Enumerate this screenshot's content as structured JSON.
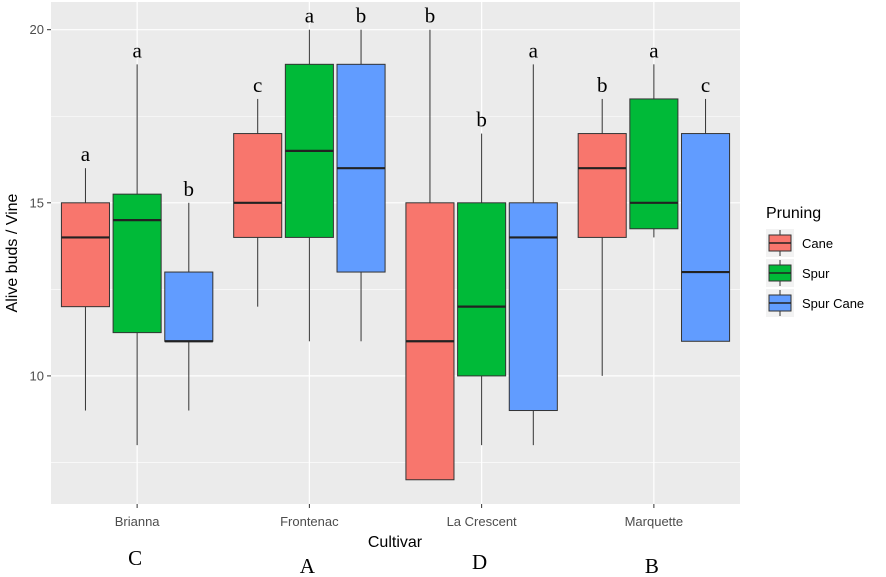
{
  "chart_data": {
    "type": "boxplot",
    "xlabel": "Cultivar",
    "ylabel": "Alive buds / Vine",
    "ylim": [
      6.3,
      20.8
    ],
    "yticks": [
      10,
      15,
      20
    ],
    "grid": true,
    "legend": {
      "title": "Pruning",
      "position": "right",
      "entries": [
        "Cane",
        "Spur",
        "Spur Cane"
      ]
    },
    "categories": [
      "Brianna",
      "Frontenac",
      "La Crescent",
      "Marquette"
    ],
    "category_letters": [
      "C",
      "A",
      "D",
      "B"
    ],
    "series": [
      {
        "name": "Cane",
        "color": "#F8766D",
        "boxes": [
          {
            "min": 9,
            "q1": 12,
            "median": 14,
            "q3": 15,
            "max": 16,
            "letter": "a"
          },
          {
            "min": 12,
            "q1": 14,
            "median": 15,
            "q3": 17,
            "max": 18,
            "letter": "c"
          },
          {
            "min": 7,
            "q1": 7,
            "median": 11,
            "q3": 15,
            "max": 20,
            "letter": "b"
          },
          {
            "min": 10,
            "q1": 14,
            "median": 16,
            "q3": 17,
            "max": 18,
            "letter": "b"
          }
        ]
      },
      {
        "name": "Spur",
        "color": "#00BA38",
        "boxes": [
          {
            "min": 8,
            "q1": 11.25,
            "median": 14.5,
            "q3": 15.25,
            "max": 19,
            "letter": "a"
          },
          {
            "min": 11,
            "q1": 14,
            "median": 16.5,
            "q3": 19,
            "max": 20,
            "letter": "a"
          },
          {
            "min": 8,
            "q1": 10,
            "median": 12,
            "q3": 15,
            "max": 17,
            "letter": "b"
          },
          {
            "min": 14,
            "q1": 14.25,
            "median": 15,
            "q3": 18,
            "max": 19,
            "letter": "a"
          }
        ]
      },
      {
        "name": "Spur Cane",
        "color": "#619CFF",
        "boxes": [
          {
            "min": 9,
            "q1": 11,
            "median": 11,
            "q3": 13,
            "max": 15,
            "letter": "b"
          },
          {
            "min": 11,
            "q1": 13,
            "median": 16,
            "q3": 19,
            "max": 20,
            "letter": "b"
          },
          {
            "min": 8,
            "q1": 9,
            "median": 14,
            "q3": 15,
            "max": 19,
            "letter": "a"
          },
          {
            "min": 11,
            "q1": 11,
            "median": 13,
            "q3": 17,
            "max": 18,
            "letter": "c"
          }
        ]
      }
    ]
  }
}
